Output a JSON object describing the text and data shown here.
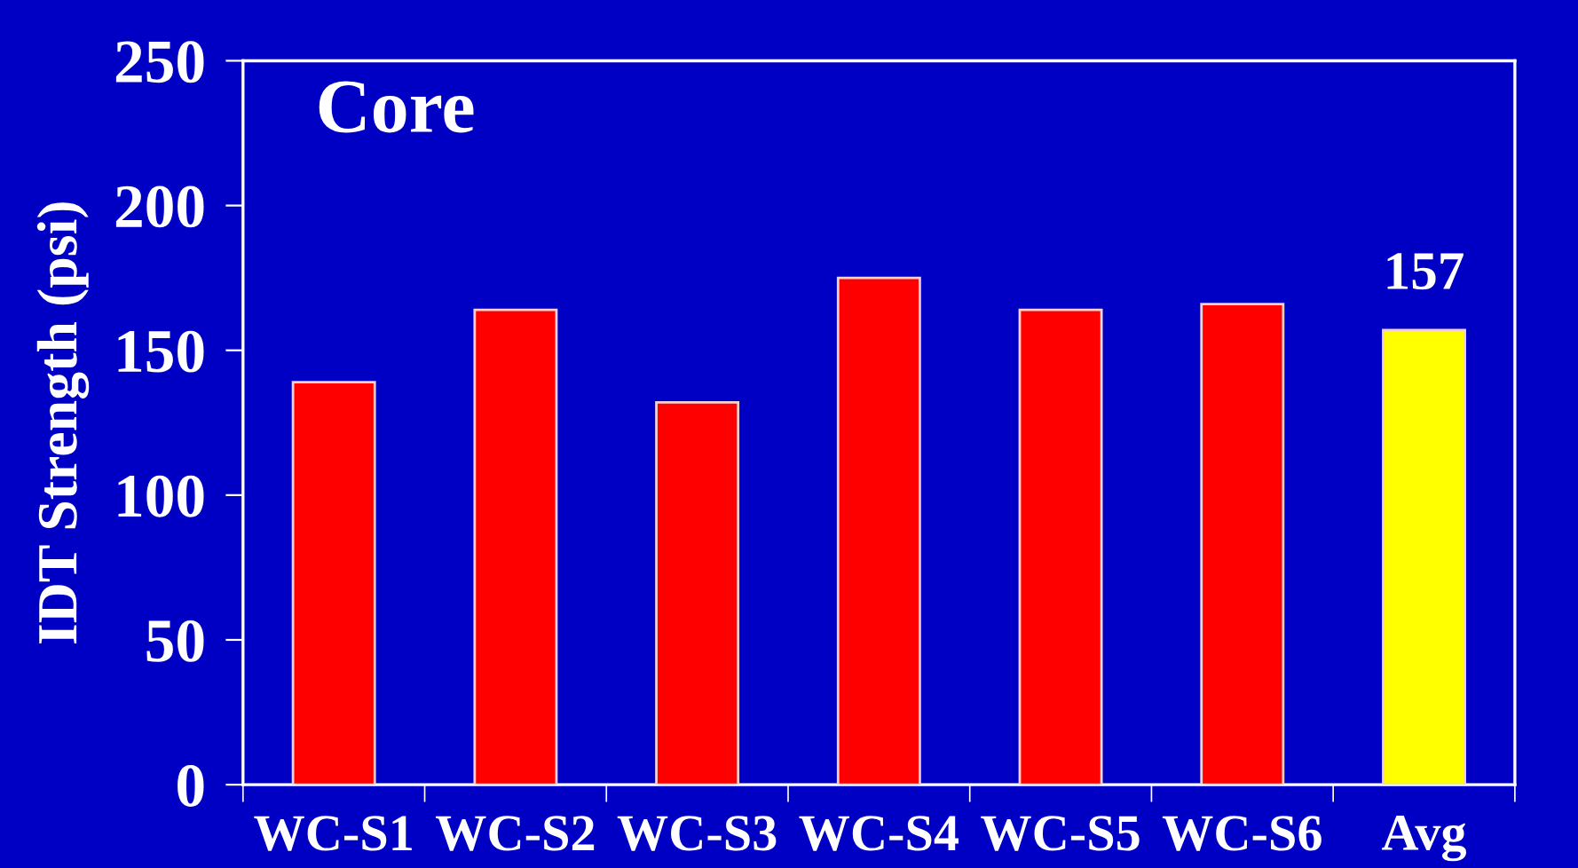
{
  "chart_data": {
    "type": "bar",
    "title": "Core",
    "ylabel": "IDT Strength (psi)",
    "categories": [
      "WC-S1",
      "WC-S2",
      "WC-S3",
      "WC-S4",
      "WC-S5",
      "WC-S6",
      "Avg"
    ],
    "values": [
      139,
      164,
      132,
      175,
      164,
      166,
      157
    ],
    "colors": [
      "#ff0000",
      "#ff0000",
      "#ff0000",
      "#ff0000",
      "#ff0000",
      "#ff0000",
      "#ffff00"
    ],
    "value_labels": [
      null,
      null,
      null,
      null,
      null,
      null,
      "157"
    ],
    "ylim": [
      0,
      250
    ],
    "yticks": [
      0,
      50,
      100,
      150,
      200,
      250
    ]
  }
}
